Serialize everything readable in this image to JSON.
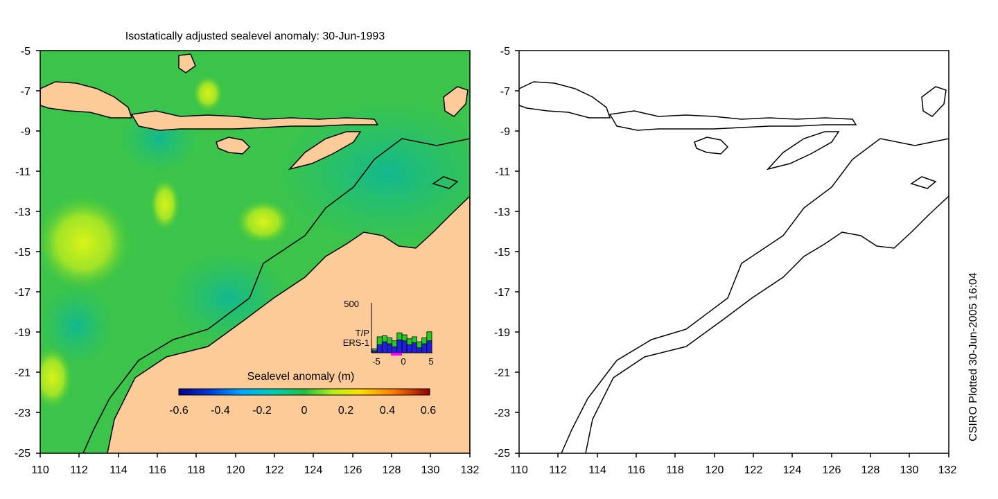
{
  "left_map": {
    "title": "Isostatically adjusted sealevel anomaly: 30-Jun-1993",
    "y_ticks": [
      "-5",
      "-7",
      "-9",
      "-11",
      "-13",
      "-15",
      "-17",
      "-19",
      "-21",
      "-23",
      "-25"
    ],
    "x_ticks": [
      "110",
      "112",
      "114",
      "116",
      "118",
      "120",
      "122",
      "124",
      "126",
      "128",
      "130",
      "132"
    ],
    "colorbar": {
      "label": "Sealevel anomaly (m)",
      "ticks": [
        "-0.6",
        "-0.4",
        "-0.2",
        "0",
        "0.2",
        "0.4",
        "0.6"
      ]
    },
    "inset": {
      "y_label": "500",
      "x_ticks": [
        "-5",
        "0",
        "5"
      ],
      "legend_tp": "T/P",
      "legend_ers": "ERS-1",
      "tp_color": "#22cc22",
      "ers_color": "#1f1fe0",
      "counts_tp": [
        40,
        160,
        170,
        150,
        120,
        200,
        180,
        140,
        160,
        110,
        150,
        210
      ],
      "counts_ers": [
        20,
        80,
        110,
        90,
        60,
        130,
        120,
        80,
        100,
        50,
        90,
        120
      ]
    }
  },
  "right_map": {
    "y_ticks": [
      "-5",
      "-7",
      "-9",
      "-11",
      "-13",
      "-15",
      "-17",
      "-19",
      "-21",
      "-23",
      "-25"
    ],
    "x_ticks": [
      "110",
      "112",
      "114",
      "116",
      "118",
      "120",
      "122",
      "124",
      "126",
      "128",
      "130",
      "132"
    ]
  },
  "credit": "CSIRO Plotted 30-Jun-2005 16:04",
  "colors": {
    "land": "#fdcb98",
    "ocean_base": "#2fc05a",
    "positive_anomaly": "#c6ef1c",
    "negative_anomaly": "#12bc8a"
  }
}
